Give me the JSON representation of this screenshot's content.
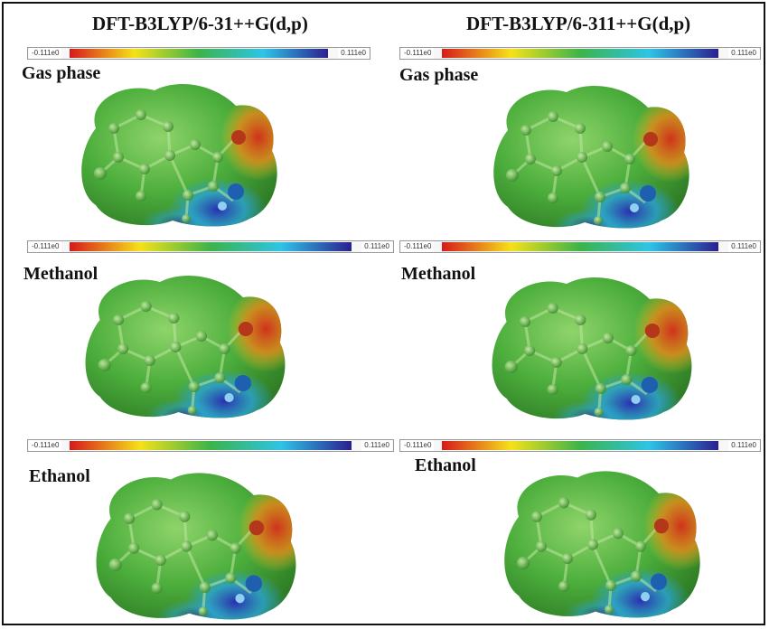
{
  "columns": [
    {
      "title": "DFT-B3LYP/6-31++G(d,p)",
      "panels": [
        {
          "label": "Gas phase",
          "scale_min": "-0.111e0",
          "scale_max": "0.111e0"
        },
        {
          "label": "Methanol",
          "scale_min": "-0.111e0",
          "scale_max": "0.111e0"
        },
        {
          "label": "Ethanol",
          "scale_min": "-0.111e0",
          "scale_max": "0.111e0"
        }
      ]
    },
    {
      "title": "DFT-B3LYP/6-311++G(d,p)",
      "panels": [
        {
          "label": "Gas phase",
          "scale_min": "-0.111e0",
          "scale_max": "0.111e0"
        },
        {
          "label": "Methanol",
          "scale_min": "-0.111e0",
          "scale_max": "0.111e0"
        },
        {
          "label": "Ethanol",
          "scale_min": "-0.111e0",
          "scale_max": "0.111e0"
        }
      ]
    }
  ],
  "colors": {
    "scale": [
      "#d7191c",
      "#f5e11a",
      "#3cb34a",
      "#2ec4e6",
      "#2b1f8f"
    ],
    "surface_main": "#4cae3c",
    "surface_dark": "#2f7d25",
    "negative_region": "#d0321c",
    "positive_region": "#2a2fb0",
    "oxygen_atom": "#b4361b",
    "nitrogen_atom": "#1f5fb0"
  }
}
